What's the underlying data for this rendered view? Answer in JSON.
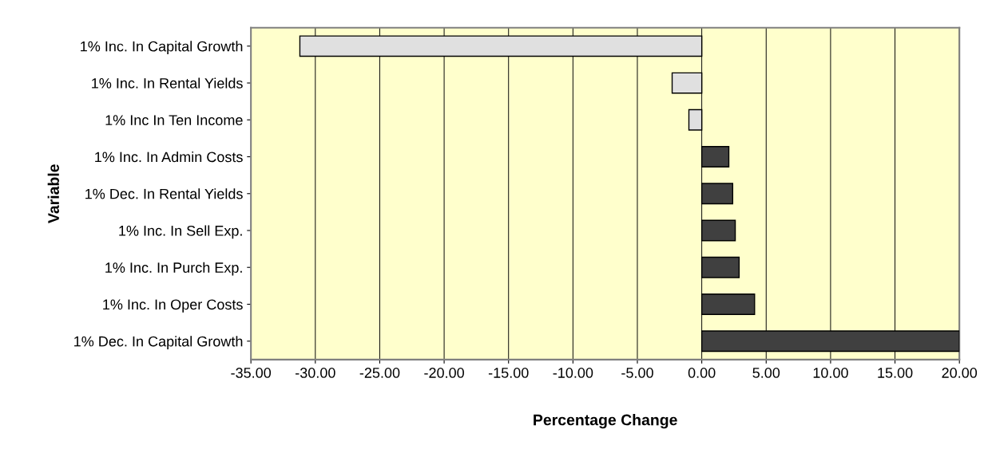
{
  "chart_data": {
    "type": "bar",
    "orientation": "horizontal",
    "xlabel": "Percentage Change",
    "ylabel": "Variable",
    "categories": [
      "1% Inc. In Capital Growth",
      "1% Inc. In Rental Yields",
      "1% Inc In Ten Income",
      "1% Inc. In Admin Costs",
      "1% Dec. In Rental Yields",
      "1% Inc. In Sell Exp.",
      "1% Inc. In Purch Exp.",
      "1% Inc. In Oper Costs",
      "1% Dec. In Capital Growth"
    ],
    "values": [
      -31.2,
      -2.3,
      -1.0,
      2.1,
      2.4,
      2.6,
      2.9,
      4.1,
      20.0
    ],
    "colors": [
      "#e0e0e0",
      "#e0e0e0",
      "#e0e0e0",
      "#404040",
      "#404040",
      "#404040",
      "#404040",
      "#404040",
      "#404040"
    ],
    "xlim": [
      -35,
      20
    ],
    "xticks": [
      {
        "value": -35,
        "label": "-35.00"
      },
      {
        "value": -30,
        "label": "-30.00"
      },
      {
        "value": -25,
        "label": "-25.00"
      },
      {
        "value": -20,
        "label": "-20.00"
      },
      {
        "value": -15,
        "label": "-15.00"
      },
      {
        "value": -10,
        "label": "-10.00"
      },
      {
        "value": -5,
        "label": "-5.00"
      },
      {
        "value": 0,
        "label": "0.00"
      },
      {
        "value": 5,
        "label": "5.00"
      },
      {
        "value": 10,
        "label": "10.00"
      },
      {
        "value": 15,
        "label": "15.00"
      },
      {
        "value": 20,
        "label": "20.00"
      }
    ],
    "grid": "x",
    "legend": false
  }
}
